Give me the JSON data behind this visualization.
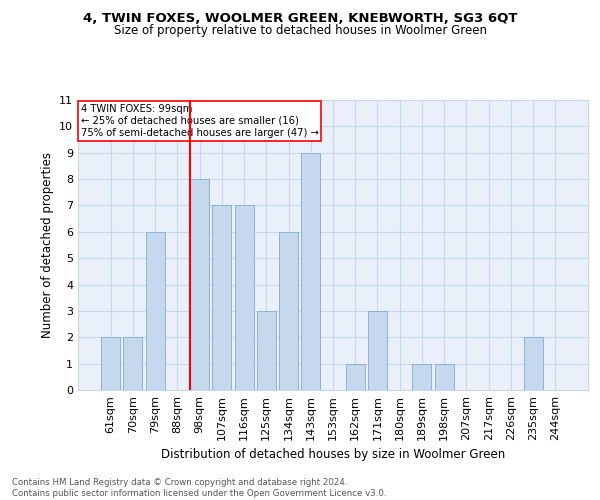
{
  "title": "4, TWIN FOXES, WOOLMER GREEN, KNEBWORTH, SG3 6QT",
  "subtitle": "Size of property relative to detached houses in Woolmer Green",
  "xlabel": "Distribution of detached houses by size in Woolmer Green",
  "ylabel": "Number of detached properties",
  "bar_labels": [
    "61sqm",
    "70sqm",
    "79sqm",
    "88sqm",
    "98sqm",
    "107sqm",
    "116sqm",
    "125sqm",
    "134sqm",
    "143sqm",
    "153sqm",
    "162sqm",
    "171sqm",
    "180sqm",
    "189sqm",
    "198sqm",
    "207sqm",
    "217sqm",
    "226sqm",
    "235sqm",
    "244sqm"
  ],
  "bar_values": [
    2,
    2,
    6,
    0,
    8,
    7,
    7,
    3,
    6,
    9,
    0,
    1,
    3,
    0,
    1,
    1,
    0,
    0,
    0,
    2,
    0
  ],
  "bar_color": "#c5d8ed",
  "bar_edge_color": "#8ab4d4",
  "grid_color": "#c8d8ec",
  "background_color": "#eaf0fa",
  "vline_index": 4,
  "annotation_line1": "4 TWIN FOXES: 99sqm",
  "annotation_line2": "← 25% of detached houses are smaller (16)",
  "annotation_line3": "75% of semi-detached houses are larger (47) →",
  "ylim": [
    0,
    11
  ],
  "yticks": [
    0,
    1,
    2,
    3,
    4,
    5,
    6,
    7,
    8,
    9,
    10,
    11
  ],
  "footer_line1": "Contains HM Land Registry data © Crown copyright and database right 2024.",
  "footer_line2": "Contains public sector information licensed under the Open Government Licence v3.0."
}
